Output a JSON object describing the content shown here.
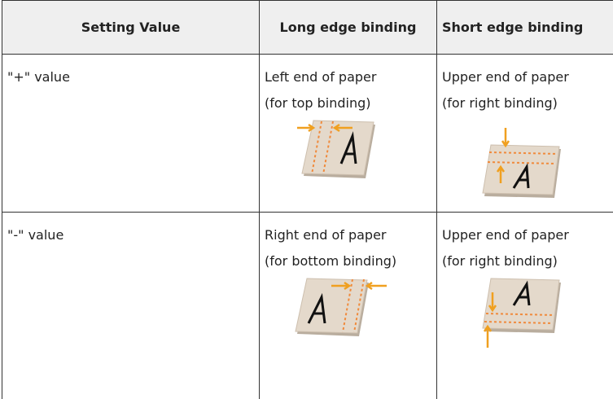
{
  "table": {
    "header": [
      "Setting Value",
      "Long edge binding",
      "Short edge binding"
    ],
    "rows": [
      {
        "setting": "\"+\" value",
        "long": [
          "Left end of paper",
          "(for top binding)"
        ],
        "short": [
          "Upper end of paper",
          "(for right binding)"
        ]
      },
      {
        "setting": "\"-\" value",
        "long": [
          "Right end of paper",
          "(for bottom binding)"
        ],
        "short": [
          "Upper end of paper",
          "(for right binding)"
        ]
      }
    ]
  }
}
